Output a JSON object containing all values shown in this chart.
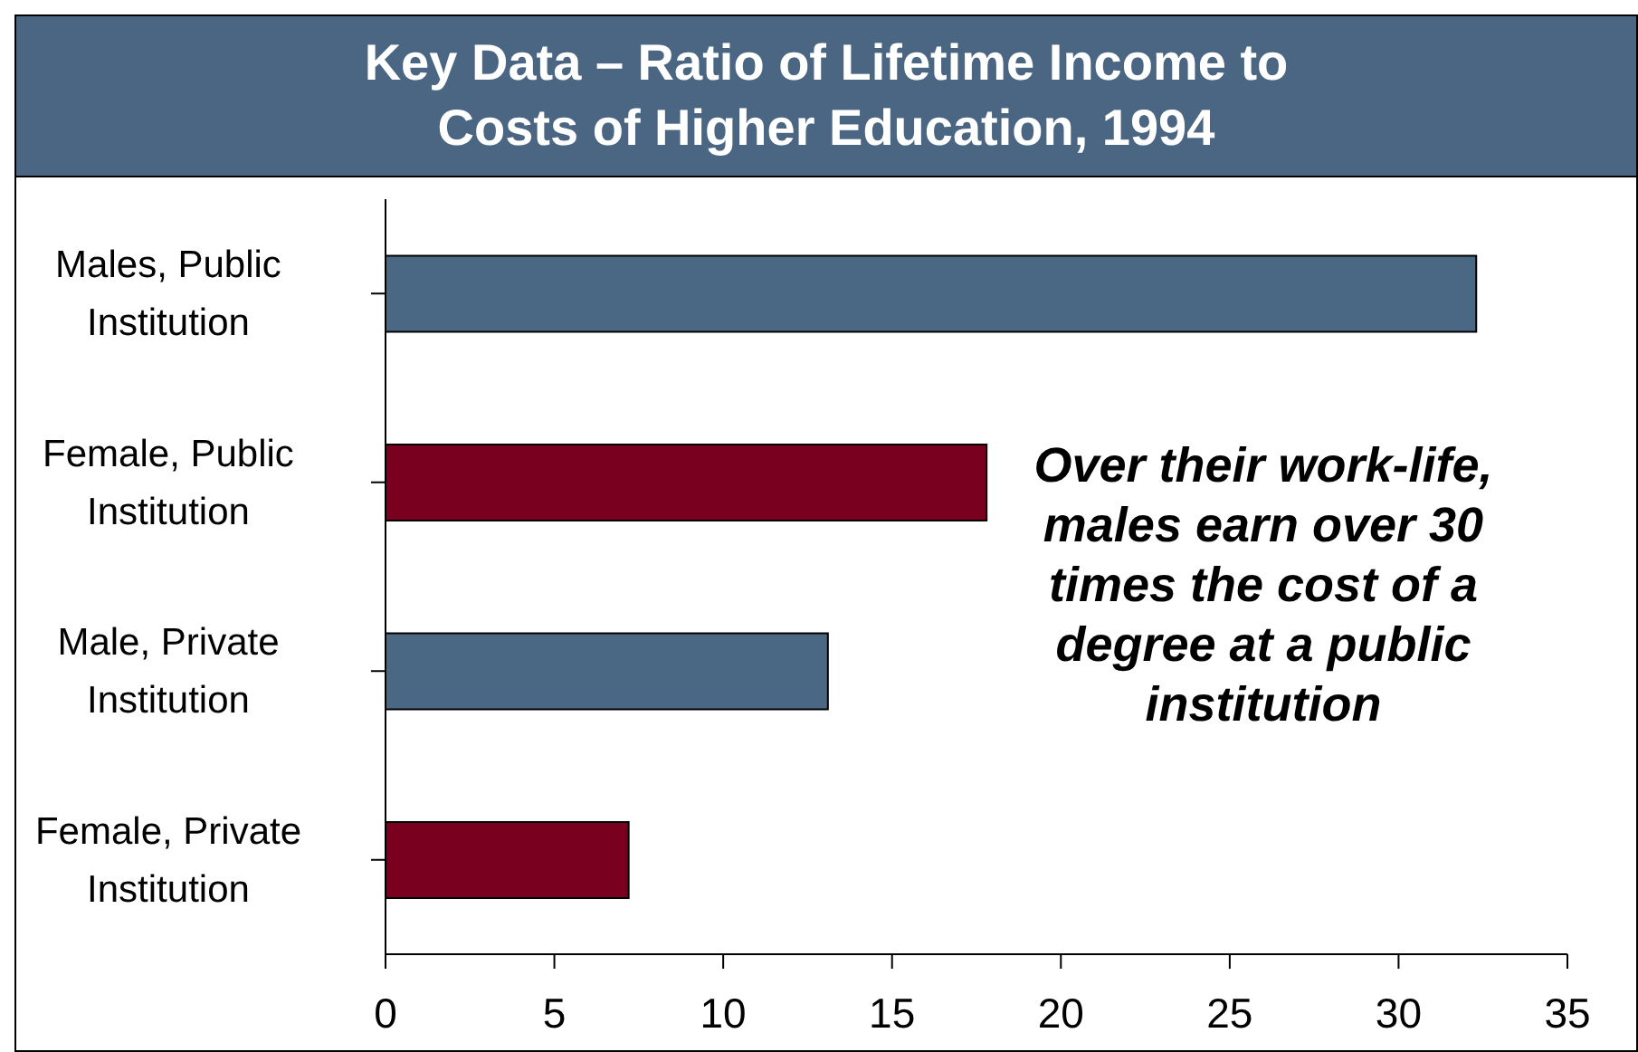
{
  "chart_data": {
    "type": "bar",
    "orientation": "horizontal",
    "title": "Key Data – Ratio of Lifetime Income to Costs of Higher Education, 1994",
    "categories": [
      "Males, Public Institution",
      "Female, Public Institution",
      "Male, Private Institution",
      "Female, Private Institution"
    ],
    "values": [
      32.3,
      17.8,
      13.1,
      7.2
    ],
    "colors": [
      "#4a6784",
      "#7a0020",
      "#4a6784",
      "#7a0020"
    ],
    "xlim": [
      0,
      35
    ],
    "xticks": [
      0,
      5,
      10,
      15,
      20,
      25,
      30,
      35
    ],
    "annotations": [
      "Over their work-life, males earn over 30 times the cost of a degree at a public institution"
    ]
  }
}
